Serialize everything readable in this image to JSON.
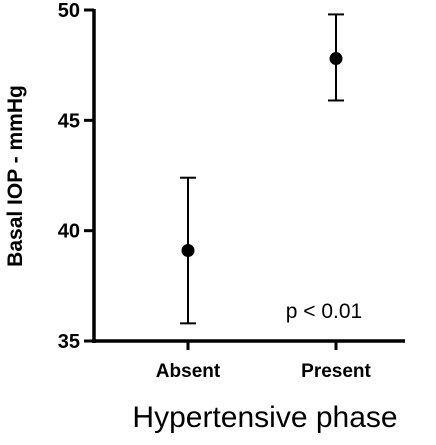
{
  "chart_data": {
    "type": "scatter",
    "title": "",
    "xlabel": "Hypertensive phase",
    "ylabel": "Basal IOP - mmHg",
    "ylim": [
      35,
      50
    ],
    "yticks": [
      35,
      40,
      45,
      50
    ],
    "categories": [
      "Absent",
      "Present"
    ],
    "series": [
      {
        "values": [
          39.1,
          47.8
        ],
        "error_low": [
          35.8,
          45.9
        ],
        "error_high": [
          42.4,
          49.8
        ]
      }
    ],
    "annotations": [
      {
        "text": "p < 0.01"
      }
    ],
    "grid": false,
    "legend": "none",
    "color": "#000000"
  }
}
